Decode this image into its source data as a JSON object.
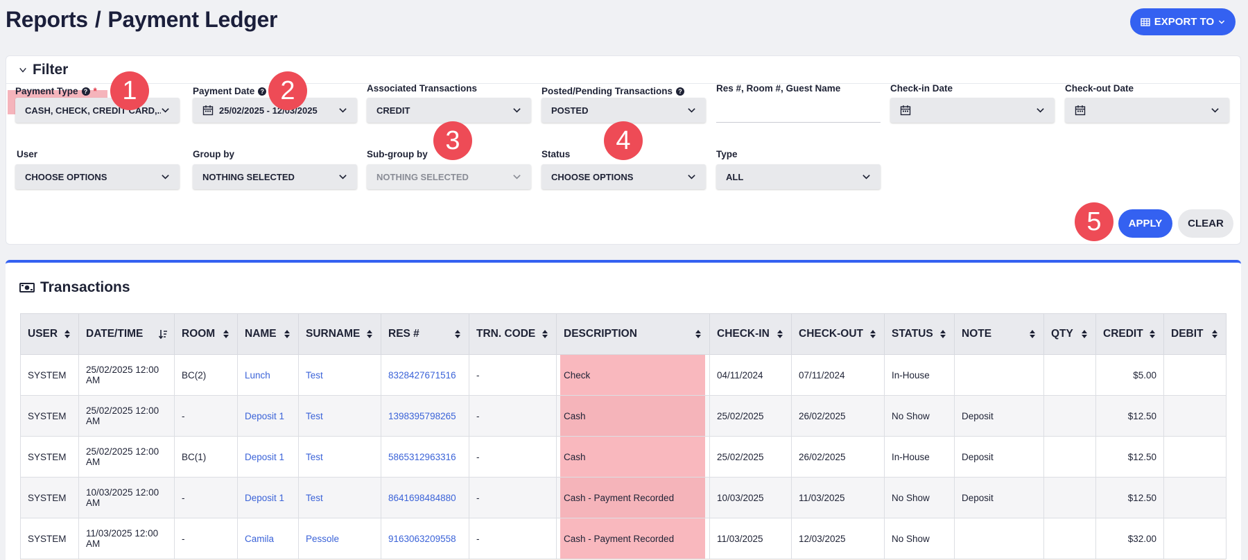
{
  "header": {
    "title": "Reports",
    "separator": "/",
    "subtitle": "Payment Ledger",
    "export_label": "EXPORT TO"
  },
  "filter": {
    "title": "Filter",
    "payment_type": {
      "label": "Payment Type",
      "required": "*",
      "value": "CASH, CHECK, CREDIT CARD,..."
    },
    "payment_date": {
      "label": "Payment Date",
      "value": "25/02/2025 - 12/03/2025"
    },
    "associated": {
      "label": "Associated Transactions",
      "value": "CREDIT"
    },
    "posted": {
      "label": "Posted/Pending Transactions",
      "value": "POSTED"
    },
    "res_search": {
      "label": "Res #, Room #, Guest Name",
      "value": ""
    },
    "checkin": {
      "label": "Check-in Date",
      "value": ""
    },
    "checkout": {
      "label": "Check-out Date",
      "value": ""
    },
    "user": {
      "label": "User",
      "value": "CHOOSE OPTIONS"
    },
    "group_by": {
      "label": "Group by",
      "value": "NOTHING SELECTED"
    },
    "subgroup_by": {
      "label": "Sub-group by",
      "value": "NOTHING SELECTED"
    },
    "status": {
      "label": "Status",
      "value": "CHOOSE OPTIONS"
    },
    "type": {
      "label": "Type",
      "value": "ALL"
    },
    "apply_label": "APPLY",
    "clear_label": "CLEAR"
  },
  "badges": [
    "1",
    "2",
    "3",
    "4",
    "5"
  ],
  "transactions": {
    "title": "Transactions",
    "columns": [
      "USER",
      "DATE/TIME",
      "ROOM",
      "NAME",
      "SURNAME",
      "RES #",
      "TRN. CODE",
      "DESCRIPTION",
      "CHECK-IN",
      "CHECK-OUT",
      "STATUS",
      "NOTE",
      "QTY",
      "CREDIT",
      "DEBIT"
    ],
    "rows": [
      {
        "user": "SYSTEM",
        "datetime": "25/02/2025 12:00 AM",
        "room": "BC(2)",
        "name": "Lunch",
        "surname": "Test",
        "res": "8328427671516",
        "trn": "-",
        "desc": "Check",
        "checkin": "04/11/2024",
        "checkout": "07/11/2024",
        "status": "In-House",
        "note": "",
        "qty": "",
        "credit": "$5.00",
        "debit": ""
      },
      {
        "user": "SYSTEM",
        "datetime": "25/02/2025 12:00 AM",
        "room": "-",
        "name": "Deposit 1",
        "surname": "Test",
        "res": "1398395798265",
        "trn": "-",
        "desc": "Cash",
        "checkin": "25/02/2025",
        "checkout": "26/02/2025",
        "status": "No Show",
        "note": "Deposit",
        "qty": "",
        "credit": "$12.50",
        "debit": ""
      },
      {
        "user": "SYSTEM",
        "datetime": "25/02/2025 12:00 AM",
        "room": "BC(1)",
        "name": "Deposit 1",
        "surname": "Test",
        "res": "5865312963316",
        "trn": "-",
        "desc": "Cash",
        "checkin": "25/02/2025",
        "checkout": "26/02/2025",
        "status": "In-House",
        "note": "Deposit",
        "qty": "",
        "credit": "$12.50",
        "debit": ""
      },
      {
        "user": "SYSTEM",
        "datetime": "10/03/2025 12:00 AM",
        "room": "-",
        "name": "Deposit 1",
        "surname": "Test",
        "res": "8641698484880",
        "trn": "-",
        "desc": "Cash - Payment Recorded",
        "checkin": "10/03/2025",
        "checkout": "11/03/2025",
        "status": "No Show",
        "note": "Deposit",
        "qty": "",
        "credit": "$12.50",
        "debit": ""
      },
      {
        "user": "SYSTEM",
        "datetime": "11/03/2025 12:00 AM",
        "room": "-",
        "name": "Camila",
        "surname": "Pessole",
        "res": "9163063209558",
        "trn": "-",
        "desc": "Cash - Payment Recorded",
        "checkin": "11/03/2025",
        "checkout": "12/03/2025",
        "status": "No Show",
        "note": "",
        "qty": "",
        "credit": "$32.00",
        "debit": ""
      }
    ]
  },
  "colors": {
    "accent": "#3461f1",
    "badge": "#ee4b56",
    "highlight": "#f5b4bb"
  }
}
